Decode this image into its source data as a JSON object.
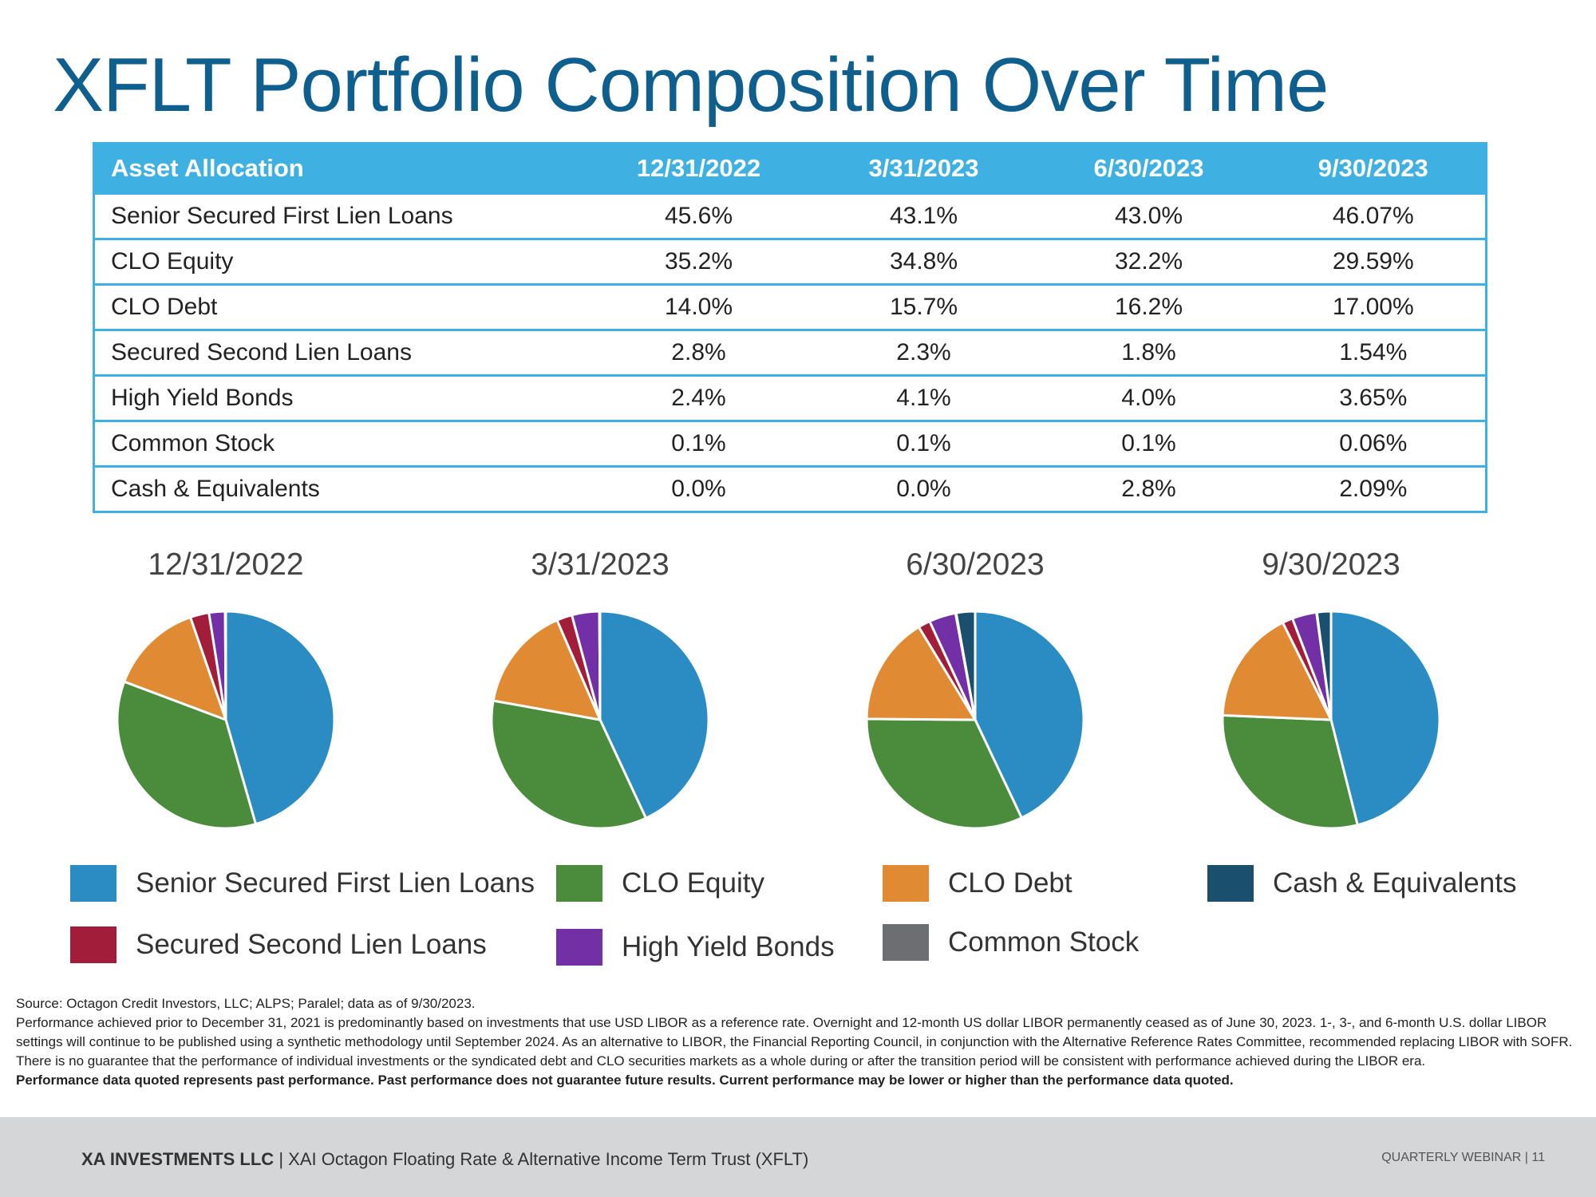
{
  "title": "XFLT Portfolio Composition Over Time",
  "colors": {
    "senior_secured": "#2b8cc4",
    "clo_equity": "#4a8c3c",
    "clo_debt": "#e08a33",
    "second_lien": "#a11d3a",
    "high_yield": "#7330a6",
    "common_stock": "#6d6e71",
    "cash": "#1a4f6e",
    "table_accent": "#3eb1e2"
  },
  "table": {
    "headers": [
      "Asset Allocation",
      "12/31/2022",
      "3/31/2023",
      "6/30/2023",
      "9/30/2023"
    ],
    "rows": [
      [
        "Senior Secured First Lien Loans",
        "45.6%",
        "43.1%",
        "43.0%",
        "46.07%"
      ],
      [
        "CLO Equity",
        "35.2%",
        "34.8%",
        "32.2%",
        "29.59%"
      ],
      [
        "CLO Debt",
        "14.0%",
        "15.7%",
        "16.2%",
        "17.00%"
      ],
      [
        "Secured Second Lien Loans",
        "2.8%",
        "2.3%",
        "1.8%",
        "1.54%"
      ],
      [
        "High Yield Bonds",
        "2.4%",
        "4.1%",
        "4.0%",
        "3.65%"
      ],
      [
        "Common Stock",
        "0.1%",
        "0.1%",
        "0.1%",
        "0.06%"
      ],
      [
        "Cash & Equivalents",
        "0.0%",
        "0.0%",
        "2.8%",
        "2.09%"
      ]
    ]
  },
  "chart_data": [
    {
      "type": "pie",
      "title": "12/31/2022",
      "categories": [
        "Senior Secured First Lien Loans",
        "CLO Equity",
        "CLO Debt",
        "Secured Second Lien Loans",
        "High Yield Bonds",
        "Common Stock",
        "Cash & Equivalents"
      ],
      "values": [
        45.6,
        35.2,
        14.0,
        2.8,
        2.4,
        0.1,
        0.0
      ]
    },
    {
      "type": "pie",
      "title": "3/31/2023",
      "categories": [
        "Senior Secured First Lien Loans",
        "CLO Equity",
        "CLO Debt",
        "Secured Second Lien Loans",
        "High Yield Bonds",
        "Common Stock",
        "Cash & Equivalents"
      ],
      "values": [
        43.1,
        34.8,
        15.7,
        2.3,
        4.1,
        0.1,
        0.0
      ]
    },
    {
      "type": "pie",
      "title": "6/30/2023",
      "categories": [
        "Senior Secured First Lien Loans",
        "CLO Equity",
        "CLO Debt",
        "Secured Second Lien Loans",
        "High Yield Bonds",
        "Common Stock",
        "Cash & Equivalents"
      ],
      "values": [
        43.0,
        32.2,
        16.2,
        1.8,
        4.0,
        0.1,
        2.8
      ]
    },
    {
      "type": "pie",
      "title": "9/30/2023",
      "categories": [
        "Senior Secured First Lien Loans",
        "CLO Equity",
        "CLO Debt",
        "Secured Second Lien Loans",
        "High Yield Bonds",
        "Common Stock",
        "Cash & Equivalents"
      ],
      "values": [
        46.07,
        29.59,
        17.0,
        1.54,
        3.65,
        0.06,
        2.09
      ]
    }
  ],
  "legend": {
    "senior_secured": "Senior Secured First Lien Loans",
    "clo_equity": "CLO Equity",
    "clo_debt": "CLO Debt",
    "cash": "Cash & Equivalents",
    "second_lien": "Secured Second Lien Loans",
    "high_yield": "High Yield Bonds",
    "common_stock": "Common Stock"
  },
  "footnotes": {
    "source": "Source: Octagon Credit Investors, LLC; ALPS; Paralel; data as of 9/30/2023.",
    "libor": "Performance achieved prior to December 31, 2021 is predominantly based on investments that use USD LIBOR as a reference rate.  Overnight and 12-month US dollar LIBOR permanently ceased as of June 30, 2023. 1-, 3-, and 6-month U.S. dollar LIBOR settings will continue to be published using a synthetic methodology until September 2024. As an alternative to LIBOR, the Financial Reporting Council, in conjunction with the Alternative Reference Rates Committee, recommended replacing LIBOR with SOFR. There is no guarantee that the performance of individual investments or the syndicated debt and CLO securities markets as a whole during or after the transition period will be consistent with performance achieved during the LIBOR era.",
    "disclaimer": "Performance data quoted represents past performance. Past performance does not guarantee future results. Current performance may be lower or higher than the performance data quoted."
  },
  "footer": {
    "firm": "XA INVESTMENTS LLC",
    "separator": "|",
    "fund": "XAI Octagon Floating Rate & Alternative Income Term Trust (XFLT)",
    "right": "QUARTERLY WEBINAR  |  11"
  }
}
